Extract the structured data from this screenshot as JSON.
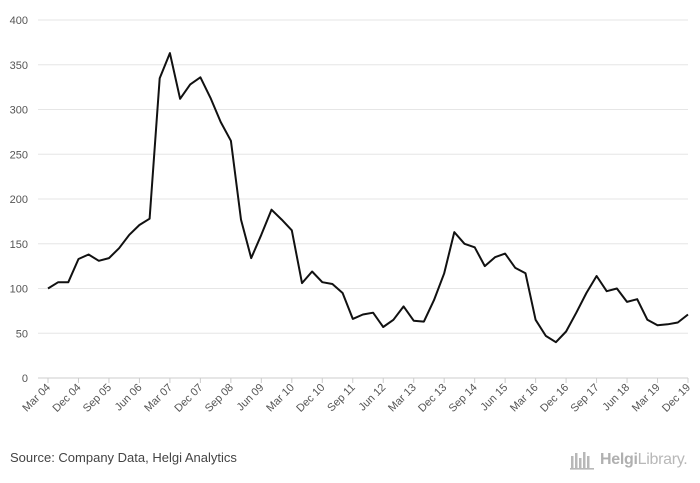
{
  "chart_data": {
    "type": "line",
    "title": "",
    "xlabel": "",
    "ylabel": "",
    "ylim": [
      0,
      400
    ],
    "yticks": [
      0,
      50,
      100,
      150,
      200,
      250,
      300,
      350,
      400
    ],
    "grid": true,
    "x_tick_labels": [
      "Mar 04",
      "Dec 04",
      "Sep 05",
      "Jun 06",
      "Mar 07",
      "Dec 07",
      "Sep 08",
      "Jun 09",
      "Mar 10",
      "Dec 10",
      "Sep 11",
      "Jun 12",
      "Mar 13",
      "Dec 13",
      "Sep 14",
      "Jun 15",
      "Mar 16",
      "Dec 16",
      "Sep 17",
      "Jun 18",
      "Mar 19",
      "Dec 19"
    ],
    "series": [
      {
        "values": [
          100,
          107,
          107,
          133,
          138,
          131,
          134,
          145,
          160,
          171,
          178,
          335,
          363,
          312,
          328,
          336,
          313,
          286,
          265,
          177,
          134,
          160,
          188,
          177,
          165,
          106,
          119,
          107,
          105,
          95,
          66,
          71,
          73,
          57,
          65,
          80,
          64,
          63,
          87,
          117,
          163,
          150,
          146,
          125,
          135,
          139,
          123,
          117,
          65,
          47,
          40,
          52,
          73,
          95,
          114,
          97,
          100,
          85,
          88,
          65,
          59,
          60,
          62,
          71
        ]
      }
    ],
    "line_color": "#111111"
  },
  "footer": {
    "source": "Source: Company Data, Helgi Analytics",
    "brand_name": "Helgi",
    "brand_suffix": "Library."
  }
}
